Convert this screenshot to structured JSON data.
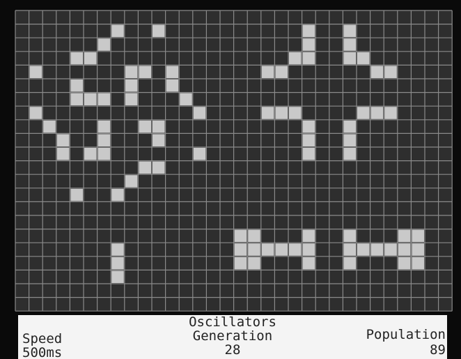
{
  "pattern": "Oscillators",
  "speed": {
    "label": "Speed",
    "value": "500ms"
  },
  "generation": {
    "label": "Generation",
    "value": 28
  },
  "population": {
    "label": "Population",
    "value": 89
  }
}
